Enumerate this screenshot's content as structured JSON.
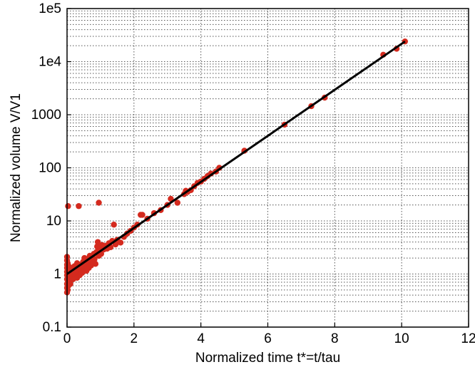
{
  "chart_data": {
    "type": "scatter",
    "title": "",
    "xlabel": "Normalized time t*=t/tau",
    "ylabel": "Normalized volume V/V1",
    "xlim": [
      0,
      12
    ],
    "ylim": [
      0.1,
      100000
    ],
    "yscale": "log",
    "grid": "major and minor, dotted",
    "x_ticks": [
      0,
      2,
      4,
      6,
      8,
      10,
      12
    ],
    "x_tick_labels": [
      "0",
      "2",
      "4",
      "6",
      "8",
      "10",
      "12"
    ],
    "y_ticks": [
      0.1,
      1,
      10,
      100,
      1000,
      10000,
      100000
    ],
    "y_tick_labels": [
      "0.1",
      "1",
      "10",
      "100",
      "1000",
      "1e4",
      "1e5"
    ],
    "colors": {
      "points": "#d42a1e",
      "fit_line": "#000000",
      "grid": "#555555"
    },
    "series": [
      {
        "kind": "points",
        "points": [
          [
            0.0,
            0.45
          ],
          [
            0.0,
            0.55
          ],
          [
            0.0,
            0.65
          ],
          [
            0.0,
            0.8
          ],
          [
            0.0,
            0.95
          ],
          [
            0.0,
            1.1
          ],
          [
            0.0,
            1.3
          ],
          [
            0.0,
            1.5
          ],
          [
            0.0,
            1.8
          ],
          [
            0.0,
            2.1
          ],
          [
            0.02,
            0.5
          ],
          [
            0.02,
            0.7
          ],
          [
            0.02,
            0.9
          ],
          [
            0.02,
            1.2
          ],
          [
            0.02,
            1.6
          ],
          [
            0.03,
            19
          ],
          [
            0.04,
            0.6
          ],
          [
            0.04,
            1.0
          ],
          [
            0.05,
            1.4
          ],
          [
            0.06,
            0.75
          ],
          [
            0.08,
            1.0
          ],
          [
            0.1,
            1.2
          ],
          [
            0.1,
            0.65
          ],
          [
            0.12,
            0.9
          ],
          [
            0.15,
            1.3
          ],
          [
            0.15,
            1.05
          ],
          [
            0.18,
            0.8
          ],
          [
            0.2,
            1.15
          ],
          [
            0.22,
            1.4
          ],
          [
            0.25,
            1.0
          ],
          [
            0.28,
            1.25
          ],
          [
            0.3,
            0.85
          ],
          [
            0.3,
            1.6
          ],
          [
            0.32,
            1.1
          ],
          [
            0.35,
            19
          ],
          [
            0.35,
            1.35
          ],
          [
            0.38,
            0.95
          ],
          [
            0.4,
            1.5
          ],
          [
            0.42,
            1.2
          ],
          [
            0.45,
            1.05
          ],
          [
            0.48,
            1.7
          ],
          [
            0.5,
            1.3
          ],
          [
            0.52,
            2.0
          ],
          [
            0.55,
            1.45
          ],
          [
            0.58,
            1.15
          ],
          [
            0.6,
            1.9
          ],
          [
            0.62,
            1.55
          ],
          [
            0.65,
            1.3
          ],
          [
            0.68,
            2.2
          ],
          [
            0.7,
            1.7
          ],
          [
            0.72,
            1.45
          ],
          [
            0.75,
            2.0
          ],
          [
            0.78,
            1.6
          ],
          [
            0.8,
            2.4
          ],
          [
            0.82,
            1.9
          ],
          [
            0.85,
            1.55
          ],
          [
            0.88,
            2.6
          ],
          [
            0.9,
            3.3
          ],
          [
            0.92,
            4.0
          ],
          [
            0.95,
            22
          ],
          [
            0.95,
            2.2
          ],
          [
            0.98,
            2.8
          ],
          [
            1.0,
            3.2
          ],
          [
            1.02,
            2.4
          ],
          [
            1.05,
            3.5
          ],
          [
            1.1,
            2.9
          ],
          [
            1.15,
            3.4
          ],
          [
            1.2,
            3.0
          ],
          [
            1.25,
            3.8
          ],
          [
            1.3,
            3.2
          ],
          [
            1.35,
            4.2
          ],
          [
            1.4,
            8.5
          ],
          [
            1.45,
            3.6
          ],
          [
            1.5,
            4.4
          ],
          [
            1.6,
            3.9
          ],
          [
            1.7,
            5.0
          ],
          [
            1.8,
            5.8
          ],
          [
            1.9,
            6.5
          ],
          [
            2.0,
            7.5
          ],
          [
            2.1,
            8.5
          ],
          [
            2.2,
            13
          ],
          [
            2.25,
            13
          ],
          [
            2.4,
            11
          ],
          [
            2.6,
            14
          ],
          [
            2.8,
            16
          ],
          [
            3.0,
            20
          ],
          [
            3.1,
            26
          ],
          [
            3.3,
            22
          ],
          [
            3.5,
            32
          ],
          [
            3.55,
            37
          ],
          [
            3.6,
            35
          ],
          [
            3.7,
            38
          ],
          [
            3.8,
            45
          ],
          [
            3.9,
            52
          ],
          [
            4.0,
            55
          ],
          [
            4.1,
            62
          ],
          [
            4.2,
            70
          ],
          [
            4.3,
            78
          ],
          [
            4.45,
            85
          ],
          [
            4.55,
            100
          ],
          [
            5.3,
            210
          ],
          [
            6.5,
            650
          ],
          [
            7.3,
            1450
          ],
          [
            7.7,
            2100
          ],
          [
            9.45,
            13500
          ],
          [
            9.85,
            17500
          ],
          [
            10.1,
            24000
          ]
        ]
      },
      {
        "kind": "fit_line",
        "points": [
          [
            0,
            1.0
          ],
          [
            10.1,
            24000
          ]
        ]
      }
    ]
  }
}
